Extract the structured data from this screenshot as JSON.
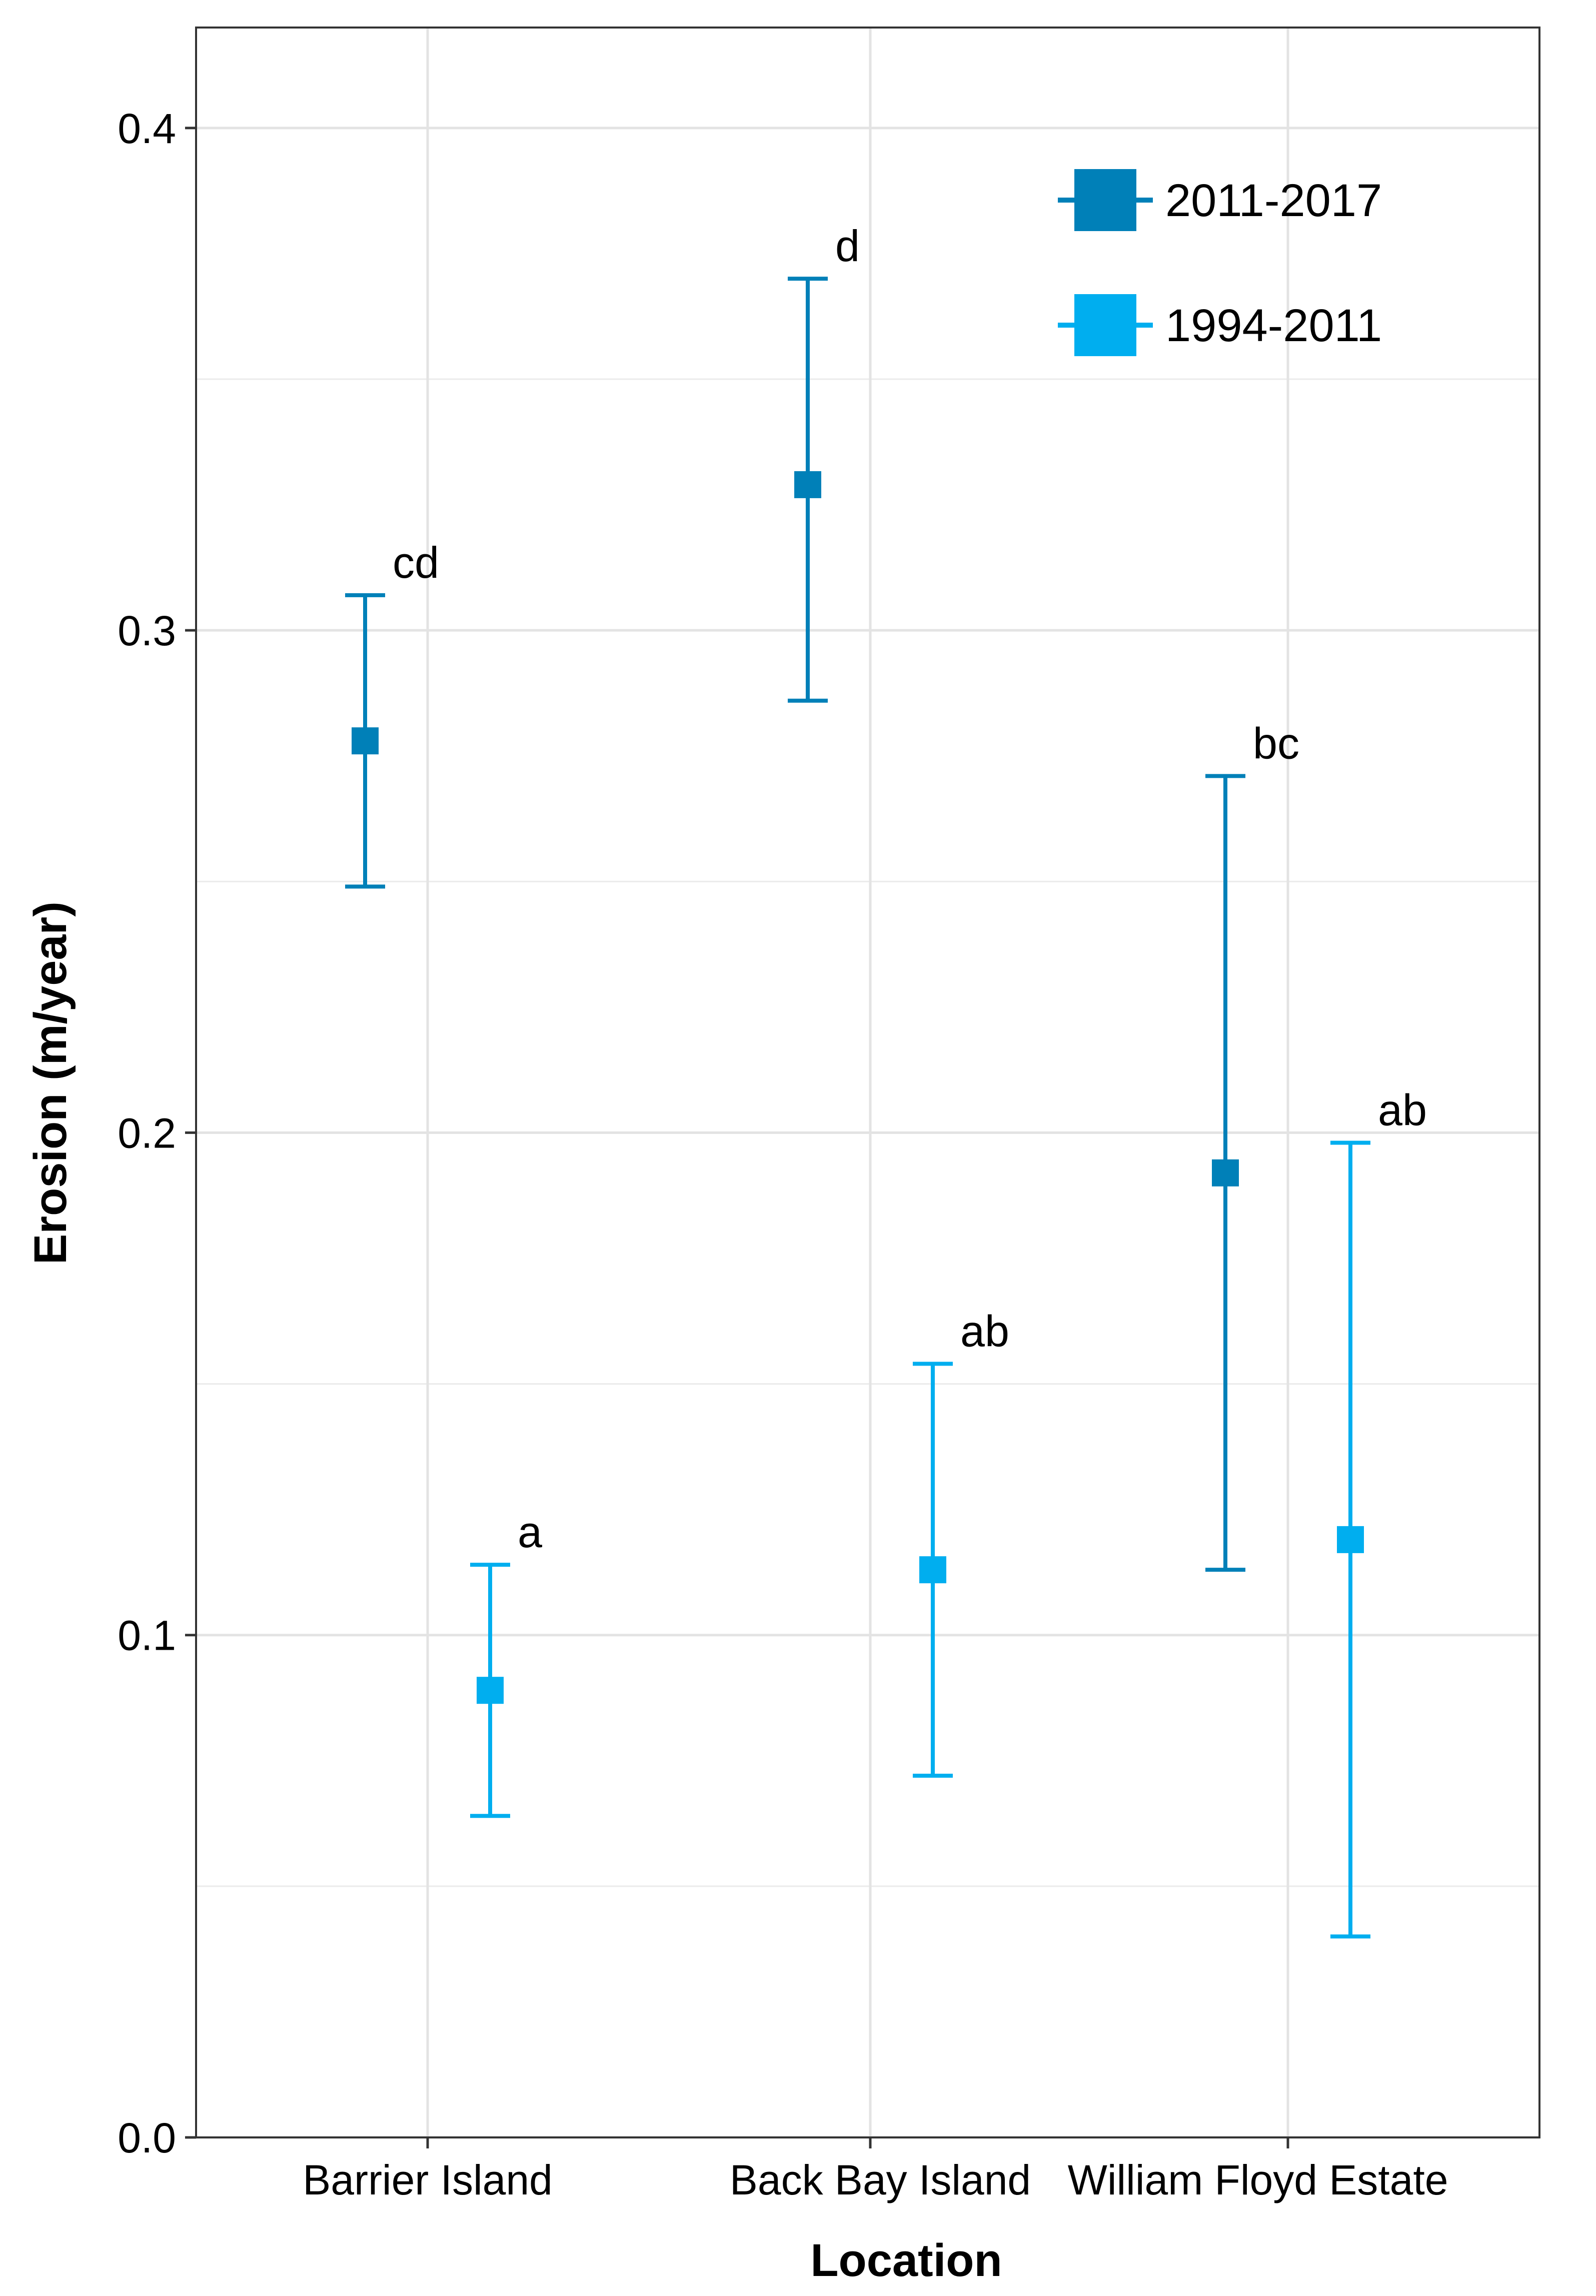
{
  "chart_data": {
    "type": "scatter",
    "title": "",
    "xlabel": "Location",
    "ylabel": "Erosion (m/year)",
    "categories": [
      "Barrier Island",
      "Back Bay Island",
      "William Floyd Estate"
    ],
    "ylim": [
      0.0,
      0.42
    ],
    "yticks": [
      0.0,
      0.1,
      0.2,
      0.3,
      0.4
    ],
    "ytick_labels": [
      "0.0",
      "0.1",
      "0.2",
      "0.3",
      "0.4"
    ],
    "grid": true,
    "legend_position": "top-right",
    "series": [
      {
        "name": "2011-2017",
        "color": "#0080B8",
        "marker": "square",
        "points": [
          {
            "category": "Barrier Island",
            "value": 0.278,
            "lower": 0.249,
            "upper": 0.307,
            "label": "cd"
          },
          {
            "category": "Back Bay Island",
            "value": 0.329,
            "lower": 0.286,
            "upper": 0.37,
            "label": "d"
          },
          {
            "category": "William Floyd Estate",
            "value": 0.192,
            "lower": 0.113,
            "upper": 0.271,
            "label": "bc"
          }
        ]
      },
      {
        "name": "1994-2011",
        "color": "#00AEEF",
        "marker": "square",
        "points": [
          {
            "category": "Barrier Island",
            "value": 0.089,
            "lower": 0.064,
            "upper": 0.114,
            "label": "a"
          },
          {
            "category": "Back Bay Island",
            "value": 0.113,
            "lower": 0.072,
            "upper": 0.154,
            "label": "ab"
          },
          {
            "category": "William Floyd Estate",
            "value": 0.119,
            "lower": 0.04,
            "upper": 0.198,
            "label": "ab"
          }
        ]
      }
    ]
  }
}
